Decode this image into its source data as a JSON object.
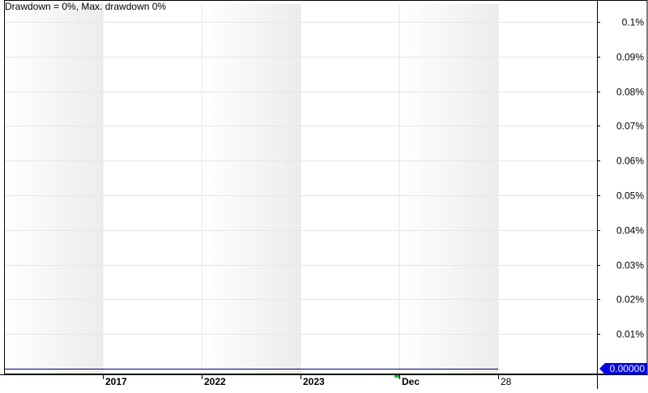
{
  "chart_data": {
    "type": "line",
    "title": "Drawdown = 0%, Max. drawdown 0%",
    "x_tick_labels": [
      {
        "label": "2017",
        "bold": true
      },
      {
        "label": "2022",
        "bold": true
      },
      {
        "label": "2023",
        "bold": true
      },
      {
        "label": "Dec",
        "bold": true
      },
      {
        "label": "28",
        "bold": false
      }
    ],
    "y_tick_labels": [
      "0.1%",
      "0.09%",
      "0.08%",
      "0.07%",
      "0.06%",
      "0.05%",
      "0.04%",
      "0.03%",
      "0.02%",
      "0.01%"
    ],
    "ylim": [
      0,
      0.1
    ],
    "y_unit": "%",
    "grid": true,
    "series": [
      {
        "values": [
          0,
          0,
          0,
          0,
          0,
          0
        ],
        "color": "#00008b"
      }
    ],
    "current_value_label": "0.00000",
    "current_value_color": "#0000ff",
    "marker_color": "#00cc00",
    "band_color": "#e8e8e8",
    "grid_color": "#e6e6e6",
    "axis_color": "#000000"
  }
}
